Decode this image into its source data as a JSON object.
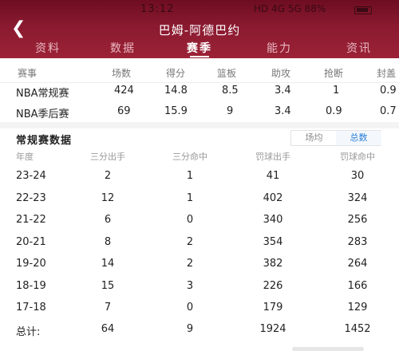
{
  "status_bar": {
    "time": "13:12",
    "right_text": "HD 4G 5G 88%"
  },
  "nav": {
    "back_icon": "chevron-left-icon",
    "title": "巴姆-阿德巴约"
  },
  "tabs": [
    {
      "label": "资料",
      "active": false
    },
    {
      "label": "数据",
      "active": false
    },
    {
      "label": "赛季",
      "active": true
    },
    {
      "label": "能力",
      "active": false
    },
    {
      "label": "资讯",
      "active": false
    }
  ],
  "summary": {
    "headers": [
      "赛事",
      "场数",
      "得分",
      "篮板",
      "助攻",
      "抢断",
      "封盖"
    ],
    "rows": [
      [
        "NBA常规赛",
        "424",
        "14.8",
        "8.5",
        "3.4",
        "1",
        "0.9"
      ],
      [
        "NBA季后赛",
        "69",
        "15.9",
        "9",
        "3.4",
        "0.9",
        "0.7"
      ]
    ]
  },
  "regular_season": {
    "title": "常规赛数据",
    "toggle": [
      {
        "label": "场均",
        "active": false
      },
      {
        "label": "总数",
        "active": true
      }
    ],
    "headers": [
      "年度",
      "三分出手",
      "三分命中",
      "罚球出手",
      "罚球命中"
    ],
    "rows": [
      [
        "23-24",
        "2",
        "1",
        "41",
        "30"
      ],
      [
        "22-23",
        "12",
        "1",
        "402",
        "324"
      ],
      [
        "21-22",
        "6",
        "0",
        "340",
        "256"
      ],
      [
        "20-21",
        "8",
        "2",
        "354",
        "283"
      ],
      [
        "19-20",
        "14",
        "2",
        "382",
        "264"
      ],
      [
        "18-19",
        "15",
        "3",
        "226",
        "166"
      ],
      [
        "17-18",
        "7",
        "0",
        "179",
        "129"
      ]
    ],
    "total": [
      "总计:",
      "64",
      "9",
      "1924",
      "1452"
    ]
  },
  "colors": {
    "header_bg": "#8a1a30",
    "accent_blue": "#2a7fd8"
  }
}
